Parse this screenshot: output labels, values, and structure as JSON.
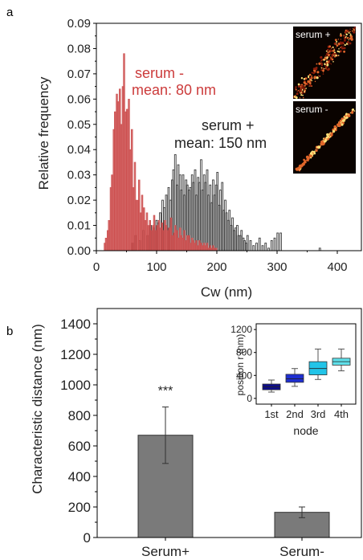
{
  "chart_data": [
    {
      "panel_label": "a",
      "type": "bar",
      "title": "",
      "xlabel": "Cw (nm)",
      "ylabel": "Relative frequency",
      "xlim": [
        0,
        440
      ],
      "ylim": [
        0,
        0.09
      ],
      "x_ticks": [
        "0",
        "100",
        "200",
        "300",
        "400"
      ],
      "y_ticks": [
        "0.00",
        "0.01",
        "0.02",
        "0.03",
        "0.04",
        "0.05",
        "0.06",
        "0.07",
        "0.08",
        "0.09"
      ],
      "bin_width": 2.5,
      "series": [
        {
          "name": "serum +",
          "annotation": [
            "serum +",
            "mean: 150 nm"
          ],
          "color": "#3a3a3a",
          "x": [
            60,
            65,
            72,
            78,
            85,
            90,
            95,
            100,
            103,
            106,
            110,
            113,
            116,
            120,
            123,
            126,
            128,
            131,
            134,
            136,
            139,
            141,
            144,
            146,
            149,
            151,
            154,
            156,
            159,
            161,
            164,
            166,
            169,
            171,
            174,
            176,
            179,
            181,
            184,
            186,
            189,
            191,
            194,
            196,
            199,
            201,
            204,
            206,
            209,
            211,
            214,
            216,
            219,
            221,
            224,
            226,
            229,
            231,
            234,
            236,
            239,
            241,
            244,
            246,
            249,
            251,
            256,
            261,
            266,
            271,
            276,
            281,
            286,
            291,
            296,
            301,
            306,
            371
          ],
          "values": [
            0.003,
            0.006,
            0.004,
            0.008,
            0.006,
            0.01,
            0.009,
            0.012,
            0.011,
            0.015,
            0.02,
            0.017,
            0.022,
            0.025,
            0.02,
            0.028,
            0.032,
            0.038,
            0.026,
            0.034,
            0.03,
            0.024,
            0.03,
            0.022,
            0.028,
            0.026,
            0.024,
            0.025,
            0.03,
            0.027,
            0.032,
            0.022,
            0.029,
            0.027,
            0.036,
            0.024,
            0.03,
            0.027,
            0.032,
            0.022,
            0.026,
            0.019,
            0.028,
            0.022,
            0.026,
            0.031,
            0.018,
            0.024,
            0.027,
            0.016,
            0.02,
            0.015,
            0.012,
            0.016,
            0.01,
            0.013,
            0.008,
            0.009,
            0.01,
            0.006,
            0.006,
            0.008,
            0.005,
            0.004,
            0.003,
            0.006,
            0.004,
            0.002,
            0.003,
            0.005,
            0.002,
            0.003,
            0.001,
            0.004,
            0.005,
            0.007,
            0.007,
            0.001
          ]
        },
        {
          "name": "serum -",
          "annotation": [
            "serum -",
            "mean: 80 nm"
          ],
          "color": "#cc4e4e",
          "x": [
            14,
            16,
            19,
            21,
            24,
            26,
            29,
            31,
            34,
            36,
            39,
            41,
            44,
            46,
            49,
            51,
            54,
            56,
            59,
            61,
            64,
            66,
            69,
            71,
            74,
            76,
            79,
            81,
            84,
            86,
            89,
            91,
            94,
            96,
            99,
            101,
            104,
            106,
            109,
            111,
            114,
            116,
            119,
            121,
            124,
            126,
            129,
            131,
            134,
            136,
            139,
            141,
            144,
            146,
            149,
            151,
            154,
            156,
            159,
            161,
            164,
            166,
            169,
            171,
            174,
            176,
            179,
            181,
            184,
            186,
            189,
            191,
            194,
            196,
            199
          ],
          "values": [
            0.003,
            0.005,
            0.008,
            0.012,
            0.025,
            0.03,
            0.048,
            0.055,
            0.062,
            0.059,
            0.064,
            0.05,
            0.065,
            0.078,
            0.055,
            0.056,
            0.06,
            0.04,
            0.048,
            0.025,
            0.035,
            0.02,
            0.02,
            0.028,
            0.015,
            0.022,
            0.017,
            0.012,
            0.015,
            0.01,
            0.012,
            0.008,
            0.01,
            0.014,
            0.008,
            0.01,
            0.012,
            0.009,
            0.011,
            0.008,
            0.012,
            0.01,
            0.008,
            0.009,
            0.013,
            0.006,
            0.007,
            0.01,
            0.008,
            0.005,
            0.009,
            0.006,
            0.005,
            0.008,
            0.004,
            0.006,
            0.006,
            0.003,
            0.005,
            0.004,
            0.003,
            0.004,
            0.002,
            0.004,
            0.003,
            0.002,
            0.003,
            0.002,
            0.003,
            0.001,
            0.002,
            0.001,
            0.002,
            0.001,
            0.001
          ]
        }
      ],
      "inset_images": [
        {
          "label": "serum +"
        },
        {
          "label": "serum -"
        }
      ]
    },
    {
      "panel_label": "b",
      "type": "bar",
      "title": "",
      "xlabel": "",
      "ylabel": "Characteristic distance  (nm)",
      "ylim": [
        0,
        1500
      ],
      "y_ticks": [
        "0",
        "200",
        "400",
        "600",
        "800",
        "1000",
        "1200",
        "1400"
      ],
      "categories": [
        "Serum+",
        "Serum-"
      ],
      "values": [
        670,
        165
      ],
      "errors": [
        185,
        35
      ],
      "bar_color": "#7a7a7a",
      "significance": "***",
      "inset": {
        "type": "box",
        "xlabel": "node",
        "ylabel": "position r (nm)",
        "ylim": [
          -100,
          1300
        ],
        "y_ticks": [
          "0",
          "400",
          "800",
          "1200"
        ],
        "categories": [
          "1st",
          "2nd",
          "3rd",
          "4th"
        ],
        "boxes": [
          {
            "q1": 150,
            "median": 200,
            "q3": 250,
            "whisker_low": 110,
            "whisker_high": 320,
            "color": "#0d0d8a"
          },
          {
            "q1": 280,
            "median": 340,
            "q3": 420,
            "whisker_low": 210,
            "whisker_high": 520,
            "color": "#1f2fd1"
          },
          {
            "q1": 410,
            "median": 520,
            "q3": 640,
            "whisker_low": 330,
            "whisker_high": 860,
            "color": "#22c4e8"
          },
          {
            "q1": 580,
            "median": 640,
            "q3": 700,
            "whisker_low": 480,
            "whisker_high": 860,
            "color": "#5fe0ea"
          }
        ]
      }
    }
  ]
}
